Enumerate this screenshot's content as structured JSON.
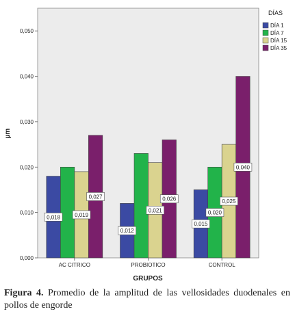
{
  "chart_data": {
    "type": "bar",
    "categories": [
      "AC CITRICO",
      "PROBIOTICO",
      "CONTROL"
    ],
    "series": [
      {
        "name": "DÍA 1",
        "values": [
          0.018,
          0.012,
          0.015
        ],
        "labels": [
          "0,018",
          "0,012",
          "0,015"
        ],
        "color": "#3b4aa3"
      },
      {
        "name": "DÍA 7",
        "values": [
          0.02,
          0.023,
          0.02
        ],
        "labels": [
          "0,020",
          "0,023",
          "0,020"
        ],
        "color": "#22b34a"
      },
      {
        "name": "DÍA 15",
        "values": [
          0.019,
          0.021,
          0.025
        ],
        "labels": [
          "0,019",
          "0,021",
          "0,025"
        ],
        "color": "#dad38f"
      },
      {
        "name": "DÍA 35",
        "values": [
          0.027,
          0.026,
          0.04
        ],
        "labels": [
          "0,027",
          "0,026",
          "0,040"
        ],
        "color": "#7a1f6b"
      }
    ],
    "ylabel": "µm",
    "xlabel": "GRUPOS",
    "legend_title": "DÍAS",
    "legend_position": "top-right",
    "ylim": [
      0,
      0.055
    ],
    "yticks": [
      0,
      0.01,
      0.02,
      0.03,
      0.04,
      0.05
    ],
    "ytick_labels": [
      "0,000",
      "0,010",
      "0,020",
      "0,030",
      "0,040",
      "0,050"
    ],
    "data_labels_shown": {
      "DÍA 1": [
        true,
        true,
        true
      ],
      "DÍA 7": [
        false,
        false,
        true
      ],
      "DÍA 15": [
        true,
        true,
        true
      ],
      "DÍA 35": [
        true,
        true,
        true
      ]
    },
    "grid": false,
    "background": "#ececec"
  },
  "caption": {
    "prefix": "Figura 4.",
    "text": " Promedio de la amplitud  de las  vellosidades duodenales en pollos de engorde"
  }
}
